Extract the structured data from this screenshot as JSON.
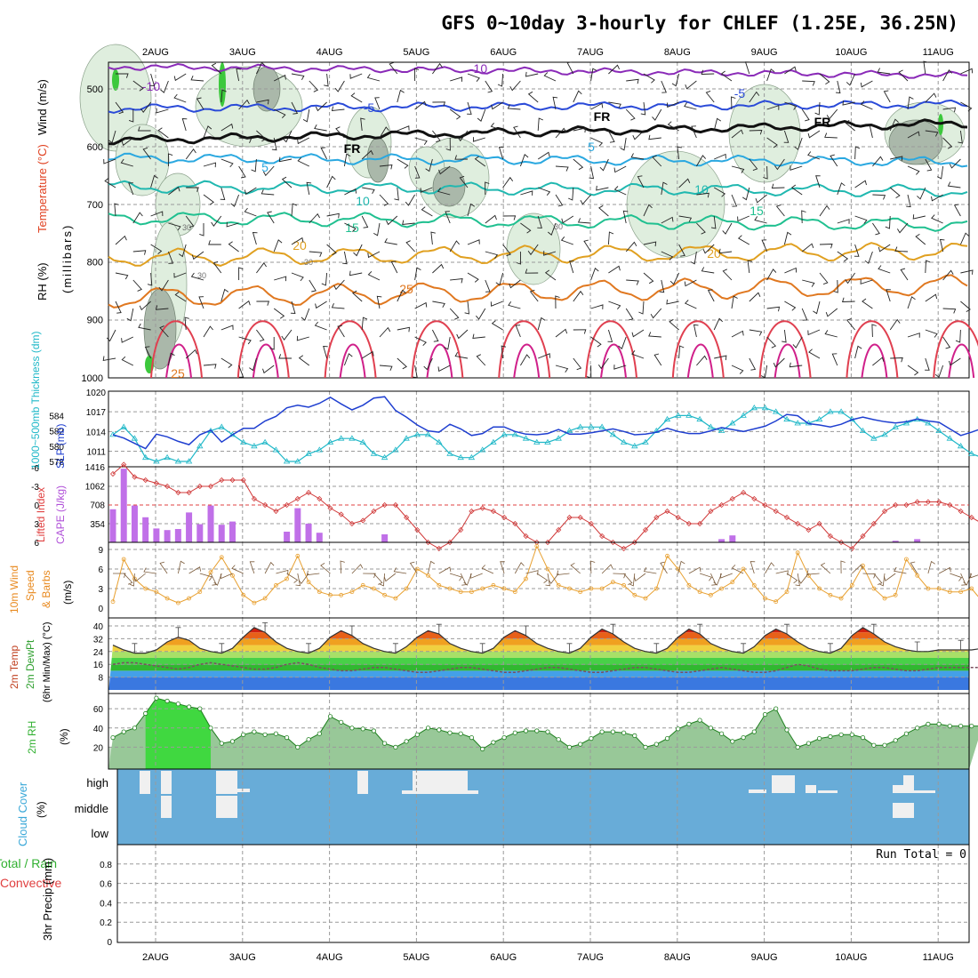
{
  "title": "GFS 0~10day 3-hourly for CHLEF (1.25E, 36.25N)",
  "date_ticks": [
    "2AUG",
    "3AUG",
    "4AUG",
    "5AUG",
    "6AUG",
    "7AUG",
    "8AUG",
    "9AUG",
    "10AUG",
    "11AUG"
  ],
  "panel_labels": {
    "upper_wind": "Wind (m/s)",
    "upper_temp": "Temperature (°C)",
    "upper_rh": "RH (%)",
    "upper_pres": "(millibars)",
    "thick": "1000~500mb Thickness (dm)",
    "slp": "SLP (mb)",
    "lifted": "Lifted Index",
    "cape": "CAPE (J/kg)",
    "wind10_a": "10m Wind",
    "wind10_b": "Speed",
    "wind10_c": "& Barbs",
    "wind10_unit": "(m/s)",
    "temp_a": "2m Temp",
    "temp_b": "2m DewPt",
    "temp_c": "(6hr Min/Max) (°C)",
    "rh_a": "2m RH",
    "rh_unit": "(%)",
    "cloud_a": "Cloud Cover",
    "cloud_unit": "(%)",
    "precip_a": "Total / Rain",
    "precip_b": "Convective",
    "precip_c": "3hr Precip (mm)",
    "run_total": "Run Total = 0"
  },
  "contour_labels": [
    "-10",
    "-10",
    "-5",
    "-5",
    "FR",
    "FR",
    "FR",
    "-5",
    "5",
    "10",
    "10",
    "15",
    "15",
    "20",
    "20",
    "25",
    "25",
    "30",
    "30",
    "30",
    "30",
    "0"
  ],
  "chart_data": [
    {
      "type": "line",
      "name": "upper_air_pressure_time",
      "ylabel": "(millibars)",
      "y_ticks": [
        500,
        600,
        700,
        800,
        900,
        1000
      ],
      "ylim": [
        1000,
        450
      ],
      "isotherm_labels": [
        -10,
        -5,
        0,
        5,
        10,
        15,
        20,
        25
      ]
    },
    {
      "type": "line",
      "name": "thickness_slp",
      "x_hours": [
        0,
        3,
        6,
        9,
        12,
        15,
        18,
        21,
        24,
        27,
        30,
        33,
        36,
        39,
        42,
        45,
        48,
        51,
        54,
        57,
        60,
        63,
        66,
        69,
        72,
        75,
        78,
        81,
        84,
        87,
        90,
        93,
        96,
        99,
        102,
        105,
        108,
        111,
        114,
        117,
        120,
        123,
        126,
        129,
        132,
        135,
        138,
        141,
        144,
        147,
        150,
        153,
        156,
        159,
        162,
        165,
        168,
        171,
        174,
        177,
        180,
        183,
        186,
        189,
        192,
        195,
        198,
        201,
        204,
        207,
        210,
        213,
        216,
        219,
        222,
        225,
        228,
        231,
        234,
        237,
        240
      ],
      "series": [
        {
          "name": "SLP (mb)",
          "color": "#1f3fd0",
          "axis": "right",
          "y_ticks": [
            1011,
            1014,
            1017,
            1020
          ],
          "values": [
            1013.5,
            1013.0,
            1012.2,
            1011.4,
            1013.6,
            1013.2,
            1012.5,
            1012.0,
            1013.5,
            1014.2,
            1012.4,
            1013.5,
            1014.5,
            1014.5,
            1015.6,
            1016.3,
            1017.6,
            1018.0,
            1017.7,
            1018.3,
            1019.2,
            1018.2,
            1017.3,
            1018.0,
            1019.1,
            1019.3,
            1017.2,
            1016.2,
            1015.0,
            1014.1,
            1013.9,
            1015.1,
            1014.4,
            1013.4,
            1013.7,
            1014.7,
            1014.7,
            1014.0,
            1013.6,
            1013.5,
            1013.7,
            1014.3,
            1013.6,
            1013.6,
            1013.8,
            1014.1,
            1014.4,
            1014.0,
            1013.5,
            1013.6,
            1013.9,
            1014.5,
            1014.0,
            1013.7,
            1013.7,
            1014.1,
            1014.6,
            1014.3,
            1014.0,
            1014.4,
            1014.8,
            1015.6,
            1016.6,
            1016.4,
            1015.2,
            1015.0,
            1014.7,
            1015.1,
            1015.8,
            1016.2,
            1015.8,
            1015.5,
            1015.3,
            1015.5,
            1015.9,
            1015.6,
            1015.4,
            1014.4,
            1013.4,
            1013.9,
            1014.5
          ]
        },
        {
          "name": "1000~500mb Thickness (dm)",
          "color": "#20b8c8",
          "axis": "left",
          "y_ticks": [
            578,
            580,
            582,
            584
          ],
          "values": [
            581.5,
            582.5,
            581.0,
            578.5,
            578.0,
            578.5,
            578.0,
            578.0,
            580.0,
            582.0,
            582.5,
            581.5,
            580.5,
            580.0,
            580.5,
            579.5,
            578.0,
            578.0,
            579.0,
            579.5,
            580.5,
            581.0,
            581.0,
            580.5,
            579.0,
            578.5,
            579.5,
            581.0,
            581.5,
            581.5,
            580.5,
            579.0,
            578.5,
            578.5,
            579.5,
            580.5,
            581.5,
            581.5,
            581.0,
            580.5,
            580.5,
            581.0,
            582.0,
            582.5,
            582.5,
            582.5,
            581.5,
            580.5,
            580.0,
            580.5,
            582.0,
            583.5,
            584.0,
            584.0,
            583.5,
            582.5,
            582.0,
            583.0,
            584.0,
            585.0,
            585.0,
            584.5,
            583.5,
            583.0,
            583.0,
            583.5,
            584.5,
            584.5,
            583.5,
            582.0,
            581.0,
            581.5,
            582.5,
            583.0,
            583.5,
            583.0,
            582.0,
            581.0,
            580.0,
            579.0,
            578.5
          ]
        }
      ]
    },
    {
      "type": "bar",
      "name": "lifted_index_cape",
      "y_left_ticks": [
        6,
        3,
        0,
        -3,
        -6
      ],
      "y_right_ticks": [
        354,
        708,
        1062,
        1416
      ],
      "cape_bars": [
        {
          "h": 0,
          "v": 620
        },
        {
          "h": 3,
          "v": 1380
        },
        {
          "h": 6,
          "v": 690
        },
        {
          "h": 9,
          "v": 470
        },
        {
          "h": 12,
          "v": 260
        },
        {
          "h": 15,
          "v": 230
        },
        {
          "h": 18,
          "v": 250
        },
        {
          "h": 21,
          "v": 560
        },
        {
          "h": 24,
          "v": 340
        },
        {
          "h": 27,
          "v": 690
        },
        {
          "h": 30,
          "v": 330
        },
        {
          "h": 33,
          "v": 390
        },
        {
          "h": 48,
          "v": 200
        },
        {
          "h": 51,
          "v": 640
        },
        {
          "h": 54,
          "v": 350
        },
        {
          "h": 57,
          "v": 180
        },
        {
          "h": 75,
          "v": 150
        },
        {
          "h": 168,
          "v": 60
        },
        {
          "h": 171,
          "v": 130
        },
        {
          "h": 216,
          "v": 30
        },
        {
          "h": 222,
          "v": 60
        }
      ],
      "lifted_index": [
        -5,
        -6.5,
        -4.5,
        -4,
        -3.5,
        -3,
        -2,
        -2,
        -3,
        -3,
        -4,
        -4,
        -4,
        -1,
        0,
        1,
        0,
        -1,
        -2,
        -1,
        0.5,
        1.5,
        3,
        2.5,
        1,
        0,
        0,
        2,
        4,
        6,
        7,
        6,
        4,
        1,
        0.5,
        1,
        2,
        3,
        5,
        6,
        6,
        4,
        2,
        2,
        3,
        5,
        6,
        7,
        6,
        4,
        2,
        1,
        2,
        3,
        3,
        1,
        0,
        -1,
        -2,
        -1,
        0,
        1,
        2,
        3,
        4,
        3,
        5,
        6,
        7,
        5,
        3,
        1,
        0,
        0,
        -0.5,
        -0.5,
        -0.5,
        0,
        1,
        2,
        3
      ]
    },
    {
      "type": "line",
      "name": "wind10m",
      "ylabel": "(m/s)",
      "y_ticks": [
        0,
        3,
        6,
        9
      ],
      "values": [
        1,
        7.5,
        4.5,
        3,
        2.5,
        1.5,
        0.8,
        1.5,
        2.5,
        5.5,
        7.8,
        5,
        2,
        0.8,
        1.5,
        3.5,
        4.5,
        8,
        4,
        2.5,
        2,
        2,
        2.5,
        3.5,
        3,
        2,
        1.5,
        3,
        6,
        5,
        3.5,
        3,
        2.5,
        2.5,
        3,
        3.5,
        3,
        2.5,
        4.5,
        9.5,
        6,
        3.5,
        3,
        2.5,
        3,
        3,
        4,
        3.5,
        2,
        1.5,
        3,
        8,
        6,
        3.5,
        2.5,
        2,
        3,
        4,
        6,
        3.5,
        1.5,
        1,
        2.5,
        8.5,
        5,
        3,
        2,
        1.5,
        3.5,
        6.5,
        3,
        1.5,
        2,
        7.5,
        5,
        3,
        3,
        2.5,
        2.5,
        3,
        1
      ]
    },
    {
      "type": "area",
      "name": "temp_dewpt",
      "ylabel": "(°C)",
      "y_ticks": [
        8,
        16,
        24,
        32,
        40
      ],
      "temp": [
        28,
        25,
        23,
        23,
        25,
        30,
        33,
        31,
        26,
        24,
        23,
        26,
        33,
        39,
        36,
        30,
        26,
        24,
        23,
        26,
        33,
        37,
        34,
        29,
        26,
        24,
        23,
        27,
        33,
        37,
        35,
        29,
        26,
        24,
        23,
        26,
        33,
        37,
        34,
        29,
        26,
        24,
        23,
        26,
        33,
        38,
        35,
        30,
        26,
        24,
        23,
        26,
        33,
        38,
        35,
        29,
        26,
        24,
        23,
        27,
        34,
        38,
        35,
        30,
        26,
        24,
        23,
        26,
        34,
        39,
        35,
        30,
        27,
        25,
        24,
        24,
        25,
        25,
        25,
        25,
        26
      ],
      "dewpt": [
        16,
        17,
        17,
        16,
        15,
        14,
        13,
        14,
        16,
        17,
        16,
        15,
        14,
        13,
        13,
        14,
        16,
        17,
        16,
        14,
        13,
        12,
        12,
        13,
        14,
        14,
        13,
        12,
        11,
        11,
        12,
        13,
        14,
        14,
        13,
        12,
        11,
        11,
        12,
        13,
        14,
        14,
        13,
        12,
        11,
        11,
        12,
        13,
        14,
        14,
        13,
        12,
        11,
        11,
        12,
        13,
        14,
        13,
        12,
        11,
        11,
        12,
        14,
        16,
        15,
        13,
        12,
        12,
        12,
        13,
        14,
        14,
        13,
        12,
        12,
        13,
        14,
        14,
        14,
        14,
        14
      ]
    },
    {
      "type": "area",
      "name": "rh2m",
      "ylabel": "(%)",
      "y_ticks": [
        20,
        40,
        60
      ],
      "values": [
        30,
        36,
        40,
        55,
        71,
        68,
        65,
        62,
        60,
        40,
        24,
        26,
        33,
        36,
        33,
        34,
        30,
        20,
        28,
        34,
        52,
        46,
        40,
        39,
        37,
        24,
        20,
        26,
        33,
        40,
        38,
        35,
        34,
        30,
        18,
        25,
        30,
        35,
        37,
        37,
        36,
        28,
        20,
        23,
        29,
        36,
        36,
        35,
        32,
        20,
        23,
        29,
        39,
        44,
        48,
        40,
        34,
        26,
        30,
        36,
        54,
        60,
        38,
        20,
        24,
        29,
        31,
        33,
        33,
        30,
        22,
        22,
        27,
        34,
        40,
        44,
        44,
        42,
        42,
        42,
        42
      ]
    },
    {
      "type": "bar",
      "name": "cloud_cover",
      "y_ticks": [
        "high",
        "middle",
        "low"
      ]
    },
    {
      "type": "bar",
      "name": "precip_3hr",
      "ylabel": "3hr Precip (mm)",
      "y_ticks": [
        0,
        0.2,
        0.4,
        0.6,
        0.8
      ],
      "ylim": [
        0,
        1
      ]
    }
  ]
}
